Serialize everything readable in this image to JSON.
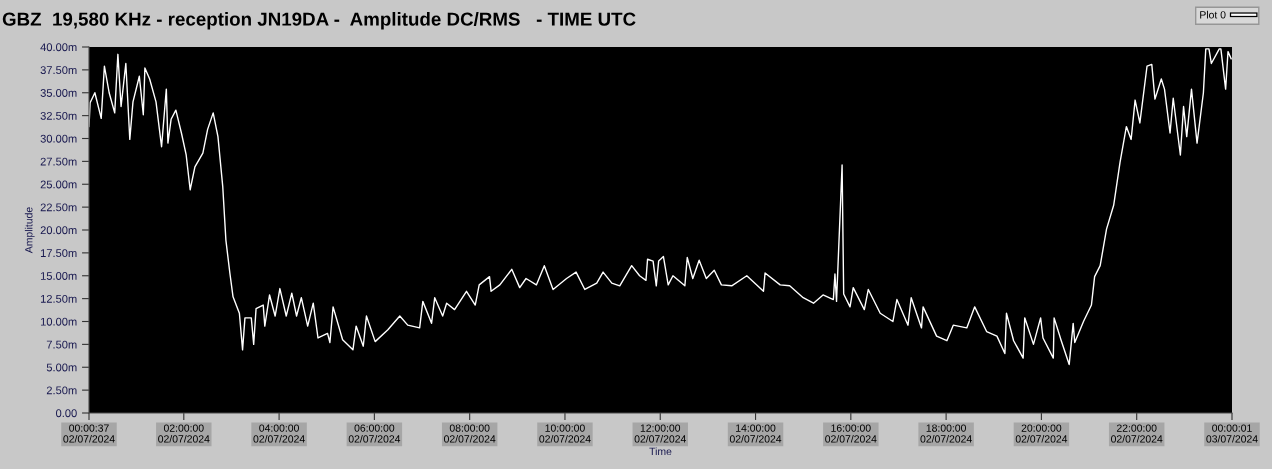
{
  "chart_data": {
    "type": "line",
    "title": "GBZ  19,580 KHz - reception JN19DA -  Amplitude DC/RMS   - TIME UTC",
    "xlabel": "Time",
    "ylabel": "Amplitude",
    "xlim": [
      "2024-07-02T00:00:37",
      "2024-07-03T00:00:01"
    ],
    "xticks": [
      {
        "value": "2024-07-02T00:00:37",
        "label": "00:00:37\n02/07/2024"
      },
      {
        "value": "2024-07-02T02:00",
        "label": "02:00:00\n02/07/2024"
      },
      {
        "value": "2024-07-02T04:00",
        "label": "04:00:00\n02/07/2024"
      },
      {
        "value": "2024-07-02T06:00",
        "label": "06:00:00\n02/07/2024"
      },
      {
        "value": "2024-07-02T08:00",
        "label": "08:00:00\n02/07/2024"
      },
      {
        "value": "2024-07-02T10:00",
        "label": "10:00:00\n02/07/2024"
      },
      {
        "value": "2024-07-02T12:00",
        "label": "12:00:00\n02/07/2024"
      },
      {
        "value": "2024-07-02T14:00",
        "label": "14:00:00\n02/07/2024"
      },
      {
        "value": "2024-07-02T16:00",
        "label": "16:00:00\n02/07/2024"
      },
      {
        "value": "2024-07-02T18:00",
        "label": "18:00:00\n02/07/2024"
      },
      {
        "value": "2024-07-02T20:00",
        "label": "20:00:00\n02/07/2024"
      },
      {
        "value": "2024-07-02T22:00",
        "label": "22:00:00\n02/07/2024"
      },
      {
        "value": "2024-07-03T00:00:01",
        "label": "00:00:01\n03/07/2024"
      }
    ],
    "ylim": [
      0,
      40
    ],
    "yticks": [
      {
        "value": 0,
        "label": "0.00"
      },
      {
        "value": 2.5,
        "label": "2.50m"
      },
      {
        "value": 5,
        "label": "5.00m"
      },
      {
        "value": 7.5,
        "label": "7.50m"
      },
      {
        "value": 10,
        "label": "10.00m"
      },
      {
        "value": 12.5,
        "label": "12.50m"
      },
      {
        "value": 15,
        "label": "15.00m"
      },
      {
        "value": 17.5,
        "label": "17.50m"
      },
      {
        "value": 20,
        "label": "20.00m"
      },
      {
        "value": 22.5,
        "label": "22.50m"
      },
      {
        "value": 25,
        "label": "25.00m"
      },
      {
        "value": 27.5,
        "label": "27.50m"
      },
      {
        "value": 30,
        "label": "30.00m"
      },
      {
        "value": 32.5,
        "label": "32.50m"
      },
      {
        "value": 35,
        "label": "35.00m"
      },
      {
        "value": 37.5,
        "label": "37.50m"
      },
      {
        "value": 40,
        "label": "40.00m"
      }
    ],
    "grid": false,
    "legend": "top right",
    "marker": "none",
    "line_style": "solid",
    "x": [
      "2024-07-02T00:00:37",
      "2024-07-02T00:02",
      "2024-07-02T00:08",
      "2024-07-02T00:16",
      "2024-07-02T00:20",
      "2024-07-02T00:26",
      "2024-07-02T00:33",
      "2024-07-02T00:37",
      "2024-07-02T00:41",
      "2024-07-02T00:47",
      "2024-07-02T00:52",
      "2024-07-02T00:56",
      "2024-07-02T01:04",
      "2024-07-02T01:09",
      "2024-07-02T01:11",
      "2024-07-02T01:17",
      "2024-07-02T01:25",
      "2024-07-02T01:32",
      "2024-07-02T01:38",
      "2024-07-02T01:40",
      "2024-07-02T01:44",
      "2024-07-02T01:50",
      "2024-07-02T01:57",
      "2024-07-02T02:03",
      "2024-07-02T02:08",
      "2024-07-02T02:14",
      "2024-07-02T02:24",
      "2024-07-02T02:30",
      "2024-07-02T02:37",
      "2024-07-02T02:43",
      "2024-07-02T02:49",
      "2024-07-02T02:53",
      "2024-07-02T02:58",
      "2024-07-02T03:02",
      "2024-07-02T03:10",
      "2024-07-02T03:14",
      "2024-07-02T03:17",
      "2024-07-02T03:25",
      "2024-07-02T03:28",
      "2024-07-02T03:31",
      "2024-07-02T03:40",
      "2024-07-02T03:42",
      "2024-07-02T03:48",
      "2024-07-02T03:55",
      "2024-07-02T04:01",
      "2024-07-02T04:09",
      "2024-07-02T04:16",
      "2024-07-02T04:22",
      "2024-07-02T04:28",
      "2024-07-02T04:36",
      "2024-07-02T04:43",
      "2024-07-02T04:49",
      "2024-07-02T05:01",
      "2024-07-02T05:04",
      "2024-07-02T05:08",
      "2024-07-02T05:20",
      "2024-07-02T05:33",
      "2024-07-02T05:37",
      "2024-07-02T05:46",
      "2024-07-02T05:50",
      "2024-07-02T06:01",
      "2024-07-02T06:17",
      "2024-07-02T06:32",
      "2024-07-02T06:42",
      "2024-07-02T06:57",
      "2024-07-02T07:01",
      "2024-07-02T07:12",
      "2024-07-02T07:16",
      "2024-07-02T07:26",
      "2024-07-02T07:31",
      "2024-07-02T07:41",
      "2024-07-02T07:56",
      "2024-07-02T08:07",
      "2024-07-02T08:12",
      "2024-07-02T08:25",
      "2024-07-02T08:27",
      "2024-07-02T08:38",
      "2024-07-02T08:53",
      "2024-07-02T09:03",
      "2024-07-02T09:11",
      "2024-07-02T09:24",
      "2024-07-02T09:34",
      "2024-07-02T09:45",
      "2024-07-02T10:02",
      "2024-07-02T10:14",
      "2024-07-02T10:25",
      "2024-07-02T10:40",
      "2024-07-02T10:48",
      "2024-07-02T10:59",
      "2024-07-02T11:09",
      "2024-07-02T11:24",
      "2024-07-02T11:34",
      "2024-07-02T11:42",
      "2024-07-02T11:44",
      "2024-07-02T11:51",
      "2024-07-02T11:55",
      "2024-07-02T11:58",
      "2024-07-02T12:04",
      "2024-07-02T12:10",
      "2024-07-02T12:16",
      "2024-07-02T12:31",
      "2024-07-02T12:34",
      "2024-07-02T12:41",
      "2024-07-02T12:49",
      "2024-07-02T12:58",
      "2024-07-02T13:08",
      "2024-07-02T13:17",
      "2024-07-02T13:30",
      "2024-07-02T13:49",
      "2024-07-02T14:10",
      "2024-07-02T14:12",
      "2024-07-02T14:31",
      "2024-07-02T14:43",
      "2024-07-02T15:00",
      "2024-07-02T15:13",
      "2024-07-02T15:25",
      "2024-07-02T15:38",
      "2024-07-02T15:40",
      "2024-07-02T15:42",
      "2024-07-02T15:49",
      "2024-07-02T15:51",
      "2024-07-02T15:59",
      "2024-07-02T16:03",
      "2024-07-02T16:17",
      "2024-07-02T16:22",
      "2024-07-02T16:37",
      "2024-07-02T16:53",
      "2024-07-02T16:58",
      "2024-07-02T17:12",
      "2024-07-02T17:16",
      "2024-07-02T17:29",
      "2024-07-02T17:31",
      "2024-07-02T17:48",
      "2024-07-02T18:01",
      "2024-07-02T18:09",
      "2024-07-02T18:26",
      "2024-07-02T18:36",
      "2024-07-02T18:51",
      "2024-07-02T19:04",
      "2024-07-02T19:14",
      "2024-07-02T19:16",
      "2024-07-02T19:25",
      "2024-07-02T19:37",
      "2024-07-02T19:39",
      "2024-07-02T19:50",
      "2024-07-02T19:59",
      "2024-07-02T20:02",
      "2024-07-02T20:15",
      "2024-07-02T20:16",
      "2024-07-02T20:25",
      "2024-07-02T20:35",
      "2024-07-02T20:40",
      "2024-07-02T20:42",
      "2024-07-02T20:53",
      "2024-07-02T21:03",
      "2024-07-02T21:07",
      "2024-07-02T21:14",
      "2024-07-02T21:22",
      "2024-07-02T21:31",
      "2024-07-02T21:39",
      "2024-07-02T21:47",
      "2024-07-02T21:53",
      "2024-07-02T21:58",
      "2024-07-02T22:04",
      "2024-07-02T22:13",
      "2024-07-02T22:19",
      "2024-07-02T22:23",
      "2024-07-02T22:31",
      "2024-07-02T22:35",
      "2024-07-02T22:42",
      "2024-07-02T22:46",
      "2024-07-02T22:55",
      "2024-07-02T22:59",
      "2024-07-02T23:03",
      "2024-07-02T23:09",
      "2024-07-02T23:16",
      "2024-07-02T23:24",
      "2024-07-02T23:27",
      "2024-07-02T23:31",
      "2024-07-02T23:34",
      "2024-07-02T23:44",
      "2024-07-02T23:46",
      "2024-07-02T23:52",
      "2024-07-02T23:55",
      "2024-07-02T23:59"
    ],
    "series": [
      {
        "name": "Plot 0",
        "color": "#ffffff",
        "values": [
          31.3,
          33.9,
          35.0,
          32.2,
          37.9,
          35.0,
          32.8,
          39.2,
          33.5,
          38.2,
          29.9,
          34.0,
          36.8,
          32.6,
          37.7,
          36.5,
          34.0,
          29.1,
          35.4,
          29.5,
          32.1,
          33.1,
          30.6,
          28.2,
          24.4,
          26.9,
          28.4,
          31.0,
          32.8,
          30.2,
          24.8,
          18.9,
          15.3,
          12.7,
          10.9,
          6.9,
          10.4,
          10.4,
          7.5,
          11.4,
          11.8,
          9.5,
          12.9,
          10.6,
          13.6,
          10.6,
          13.1,
          10.6,
          12.6,
          9.5,
          12.0,
          8.2,
          8.7,
          7.7,
          11.6,
          8.0,
          6.9,
          9.5,
          7.3,
          10.6,
          7.8,
          9.1,
          10.6,
          9.6,
          9.3,
          12.2,
          9.8,
          12.6,
          10.6,
          12.0,
          11.3,
          13.3,
          11.8,
          14.0,
          14.9,
          13.3,
          14.0,
          15.7,
          13.7,
          14.7,
          14.0,
          16.1,
          13.5,
          14.7,
          15.4,
          13.5,
          14.2,
          15.4,
          14.2,
          13.9,
          16.1,
          15.0,
          14.5,
          16.8,
          16.6,
          13.9,
          16.6,
          17.1,
          14.0,
          15.0,
          13.9,
          17.0,
          14.7,
          16.7,
          14.7,
          15.6,
          14.0,
          13.9,
          15.0,
          13.3,
          15.3,
          14.0,
          13.9,
          12.6,
          12.0,
          12.9,
          12.4,
          15.2,
          12.2,
          27.1,
          13.0,
          11.6,
          13.7,
          11.3,
          13.5,
          10.9,
          10.0,
          12.4,
          9.6,
          12.6,
          9.3,
          11.6,
          8.4,
          7.9,
          9.6,
          9.3,
          11.6,
          8.9,
          8.4,
          6.5,
          10.9,
          7.9,
          6.0,
          10.4,
          7.5,
          10.4,
          8.2,
          6.0,
          10.4,
          7.9,
          5.3,
          9.8,
          7.7,
          10.0,
          11.8,
          14.9,
          16.1,
          20.1,
          22.7,
          27.4,
          31.3,
          29.9,
          34.2,
          31.7,
          37.9,
          38.1,
          34.3,
          36.5,
          35.4,
          30.6,
          34.4,
          28.2,
          33.5,
          30.2,
          35.4,
          29.5,
          35.0,
          39.8,
          39.8,
          38.2,
          39.8,
          39.8,
          35.4,
          39.5,
          38.7
        ]
      }
    ]
  }
}
